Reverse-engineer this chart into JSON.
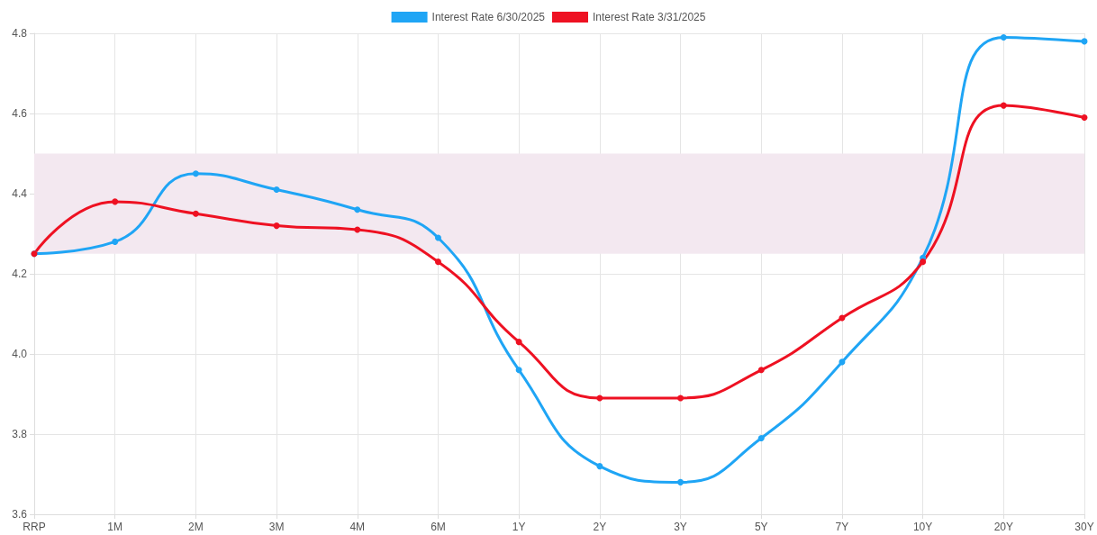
{
  "chart_data": {
    "type": "line",
    "categories": [
      "RRP",
      "1M",
      "2M",
      "3M",
      "4M",
      "6M",
      "1Y",
      "2Y",
      "3Y",
      "5Y",
      "7Y",
      "10Y",
      "20Y",
      "30Y"
    ],
    "series": [
      {
        "name": "Interest Rate 6/30/2025",
        "color": "#1fa5f5",
        "values": [
          4.25,
          4.28,
          4.45,
          4.41,
          4.36,
          4.29,
          3.96,
          3.72,
          3.68,
          3.79,
          3.98,
          4.24,
          4.79,
          4.78
        ]
      },
      {
        "name": "Interest Rate 3/31/2025",
        "color": "#ee1122",
        "values": [
          4.25,
          4.38,
          4.35,
          4.32,
          4.31,
          4.23,
          4.03,
          3.89,
          3.89,
          3.96,
          4.09,
          4.23,
          4.62,
          4.59
        ]
      }
    ],
    "bands": [
      {
        "axis": "y",
        "from": 4.25,
        "to": 4.5,
        "color": "#f3e8f0"
      }
    ],
    "ylim": [
      3.6,
      4.8
    ],
    "yticks": [
      3.6,
      3.8,
      {
        "value": 4,
        "label": "4.0"
      },
      4.2,
      4.4,
      4.6,
      4.8
    ],
    "grid": true,
    "legend": "top",
    "marker": "circle",
    "line_style": "solid"
  }
}
